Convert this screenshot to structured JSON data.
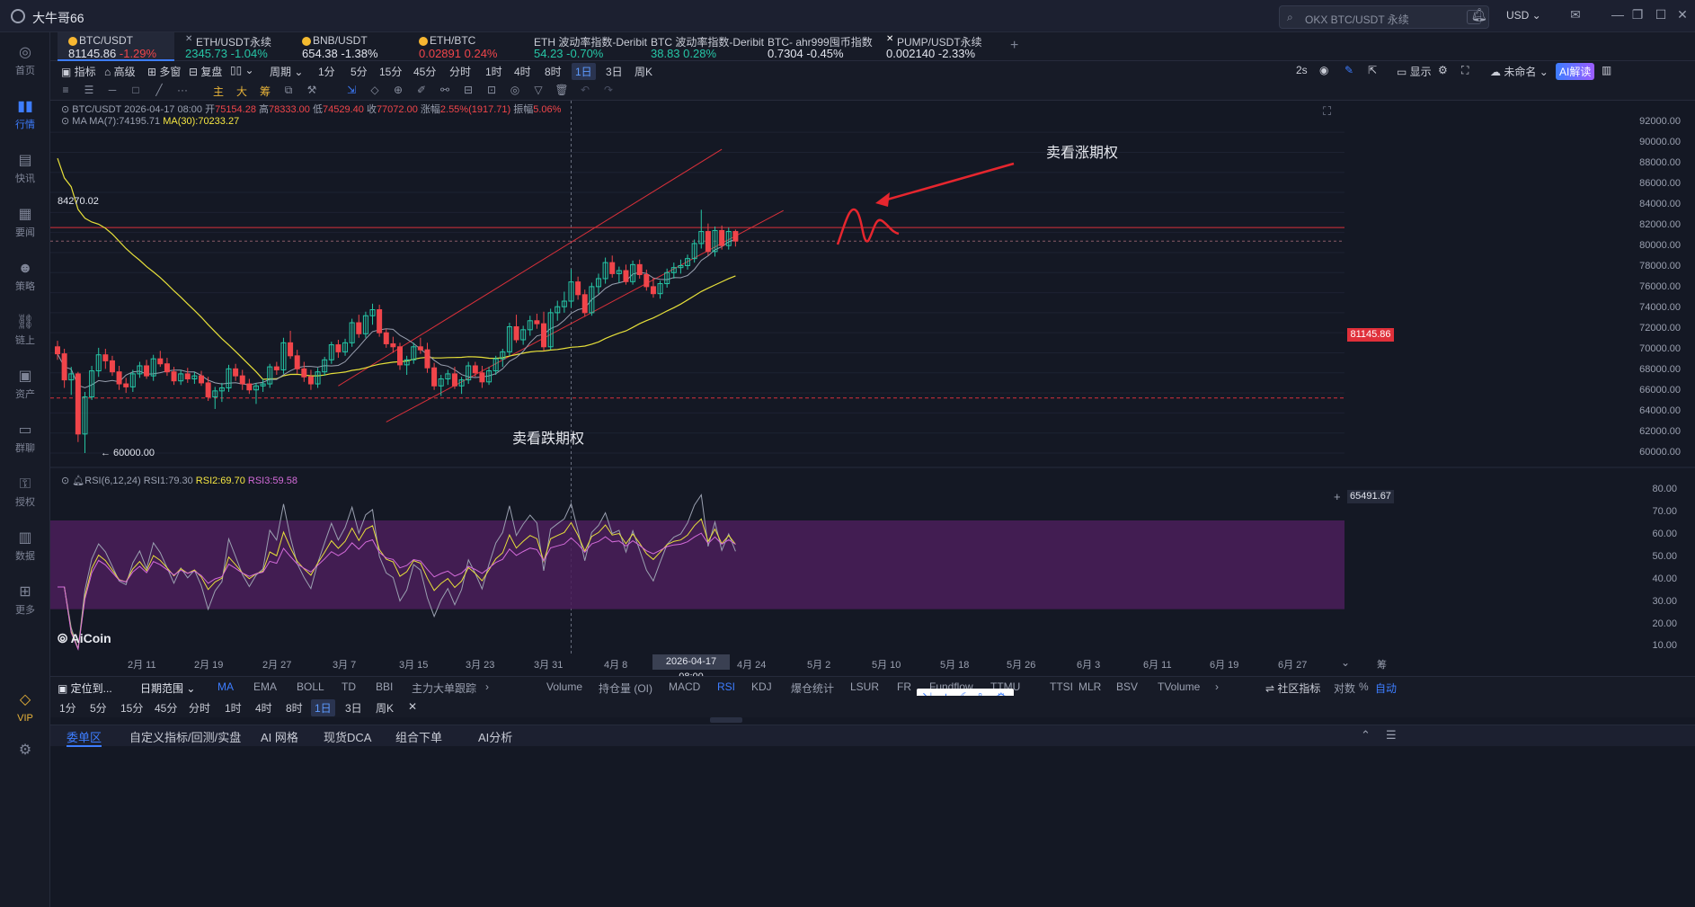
{
  "app": {
    "title": "大牛哥66"
  },
  "titlebar": {
    "search_placeholder": "OKX BTC/USDT 永续",
    "search_kbd": "/",
    "currency": "USD"
  },
  "sidebar": {
    "items": [
      {
        "label": "首页",
        "icon": "home-icon"
      },
      {
        "label": "行情",
        "icon": "chart-icon"
      },
      {
        "label": "快讯",
        "icon": "news-icon"
      },
      {
        "label": "要闻",
        "icon": "doc-icon"
      },
      {
        "label": "策略",
        "icon": "robot-icon"
      },
      {
        "label": "链上",
        "icon": "chain-icon"
      },
      {
        "label": "资产",
        "icon": "wallet-icon"
      },
      {
        "label": "群聊",
        "icon": "chat-icon"
      },
      {
        "label": "授权",
        "icon": "key-icon"
      },
      {
        "label": "数据",
        "icon": "data-icon"
      },
      {
        "label": "更多",
        "icon": "grid-icon"
      },
      {
        "label": "VIP",
        "icon": "diamond-icon"
      }
    ]
  },
  "tickers": [
    {
      "name": "BTC/USDT",
      "price": "81145.86",
      "change": "-1.29%",
      "dir": "down",
      "color": "#f7b731"
    },
    {
      "name": "ETH/USDT永续",
      "price": "2345.73",
      "change": "-1.04%",
      "dir": "up",
      "color": "#9aa0b0"
    },
    {
      "name": "BNB/USDT",
      "price": "654.38",
      "change": "-1.38%",
      "dir": "white",
      "color": "#f3ba2f"
    },
    {
      "name": "ETH/BTC",
      "price": "0.02891",
      "change": "0.24%",
      "dir": "down",
      "color": "#f7b731"
    },
    {
      "name": "ETH 波动率指数-Deribit",
      "price": "54.23",
      "change": "-0.70%",
      "dir": "up",
      "color": ""
    },
    {
      "name": "BTC 波动率指数-Deribit",
      "price": "38.83",
      "change": "0.28%",
      "dir": "up",
      "color": ""
    },
    {
      "name": "BTC- ahr999囤币指数",
      "price": "0.7304",
      "change": "-0.45%",
      "dir": "white",
      "color": ""
    },
    {
      "name": "PUMP/USDT永续",
      "price": "0.002140",
      "change": "-2.33%",
      "dir": "white",
      "color": "#ffffff"
    }
  ],
  "toolbar": {
    "indicator": "指标",
    "advanced": "高级",
    "multi": "多窗",
    "replay": "复盘",
    "period": "周期",
    "intervals": [
      "1分",
      "5分",
      "15分",
      "45分",
      "分时",
      "1时",
      "4时",
      "8时",
      "1日",
      "3日",
      "周K"
    ],
    "selected_interval": "1日",
    "refresh": "2s",
    "display": "显示",
    "unnamed": "未命名",
    "ai": "AI解读"
  },
  "drawtools": {
    "main": "主",
    "big": "大",
    "chip": "筹"
  },
  "chart_info": {
    "symbol": "BTC/USDT",
    "datetime": "2026-04-17 08:00",
    "open_label": "开",
    "open": "75154.28",
    "high_label": "高",
    "high": "78333.00",
    "low_label": "低",
    "low": "74529.40",
    "close_label": "收",
    "close": "77072.00",
    "chg_label": "涨幅",
    "chg": "2.55%(1917.71)",
    "amp_label": "振幅",
    "amp": "5.06%",
    "ma_label": "MA",
    "ma7": "MA(7):74195.71",
    "ma30": "MA(30):70233.27",
    "rsi_label": "RSI(6,12,24)",
    "rsi1": "RSI1:79.30",
    "rsi2": "RSI2:69.70",
    "rsi3": "RSI3:59.58"
  },
  "annotations": {
    "sell_call": "卖看涨期权",
    "sell_put": "卖看跌期权",
    "high_mark": "84270.02",
    "low_mark": "← 60000.00"
  },
  "price_axis": [
    "92000.00",
    "90000.00",
    "88000.00",
    "86000.00",
    "84000.00",
    "82000.00",
    "80000.00",
    "78000.00",
    "76000.00",
    "74000.00",
    "72000.00",
    "70000.00",
    "68000.00",
    "66000.00",
    "64000.00",
    "62000.00",
    "60000.00"
  ],
  "current_price": "81145.86",
  "hline_price": "65491.67",
  "rsi_axis": [
    "80.00",
    "70.00",
    "60.00",
    "50.00",
    "40.00",
    "30.00",
    "20.00",
    "10.00"
  ],
  "time_axis": [
    "2月 11",
    "2月 19",
    "2月 27",
    "3月 7",
    "3月 15",
    "3月 23",
    "3月 31",
    "4月 8",
    "4月 24",
    "5月 2",
    "5月 10",
    "5月 18",
    "5月 26",
    "6月 3",
    "6月 11",
    "6月 19",
    "6月 27"
  ],
  "crosshair_date": "2026-04-17 08:00",
  "axis_unit": "筹",
  "watermark": "AiCoin",
  "indicator_bar": {
    "locate": "定位到...",
    "range": "日期范围",
    "items": [
      "MA",
      "EMA",
      "BOLL",
      "TD",
      "BBI",
      "主力大单跟踪"
    ],
    "sub_items": [
      "Volume",
      "持仓量 (OI)",
      "MACD",
      "RSI",
      "KDJ",
      "爆仓统计",
      "LSUR",
      "FR",
      "Fundflow",
      "TTMU",
      "TTSI",
      "MLR",
      "BSV",
      "TVolume"
    ],
    "selected": "RSI",
    "community": "社区指标",
    "log": "对数",
    "pct": "%",
    "auto": "自动"
  },
  "theme_box": [
    "中"
  ],
  "bottom_tabs": [
    "委单区",
    "自定义指标/回测/实盘",
    "AI 网格",
    "现货DCA",
    "组合下单",
    "AI分析"
  ],
  "chart_data": {
    "type": "candlestick",
    "symbol": "BTC/USDT",
    "interval": "1日",
    "y_range": [
      60000,
      93000
    ],
    "candles": [
      [
        70600,
        71200,
        69300,
        69900
      ],
      [
        69900,
        70400,
        66500,
        67300
      ],
      [
        67300,
        68600,
        65800,
        67900
      ],
      [
        67900,
        68100,
        61100,
        61900
      ],
      [
        61900,
        66100,
        60000,
        65600
      ],
      [
        65600,
        68700,
        65300,
        68200
      ],
      [
        68200,
        70500,
        67600,
        69800
      ],
      [
        69800,
        70400,
        68400,
        69200
      ],
      [
        69200,
        69700,
        67700,
        68100
      ],
      [
        68100,
        68700,
        66300,
        66900
      ],
      [
        66900,
        67500,
        66000,
        66600
      ],
      [
        66600,
        68300,
        66100,
        67900
      ],
      [
        67900,
        69100,
        67500,
        68700
      ],
      [
        68700,
        69300,
        67400,
        67700
      ],
      [
        67700,
        69800,
        67200,
        69400
      ],
      [
        69400,
        70200,
        68600,
        68900
      ],
      [
        68900,
        69500,
        67700,
        68100
      ],
      [
        68100,
        68600,
        66800,
        67200
      ],
      [
        67200,
        68300,
        66800,
        67900
      ],
      [
        67900,
        68500,
        67000,
        67400
      ],
      [
        67400,
        68100,
        66900,
        67700
      ],
      [
        67700,
        68200,
        66700,
        67000
      ],
      [
        67000,
        67600,
        65200,
        65600
      ],
      [
        65600,
        66600,
        64400,
        66200
      ],
      [
        66200,
        67000,
        65100,
        66500
      ],
      [
        66500,
        68800,
        66100,
        68400
      ],
      [
        68400,
        68900,
        67200,
        67700
      ],
      [
        67700,
        68300,
        66300,
        66900
      ],
      [
        66900,
        67400,
        65900,
        66300
      ],
      [
        66300,
        67000,
        64900,
        66700
      ],
      [
        66700,
        67400,
        66100,
        66900
      ],
      [
        66900,
        68900,
        66500,
        68600
      ],
      [
        68600,
        69100,
        67800,
        68300
      ],
      [
        68300,
        71500,
        67900,
        71000
      ],
      [
        71000,
        72200,
        69400,
        69700
      ],
      [
        69700,
        70300,
        67900,
        68400
      ],
      [
        68400,
        69100,
        67100,
        67600
      ],
      [
        67600,
        68300,
        66300,
        66900
      ],
      [
        66900,
        68500,
        66500,
        68100
      ],
      [
        68100,
        69600,
        67700,
        69300
      ],
      [
        69300,
        71100,
        68900,
        70800
      ],
      [
        70800,
        71300,
        69500,
        70100
      ],
      [
        70100,
        71400,
        69700,
        71000
      ],
      [
        71000,
        73400,
        70600,
        73000
      ],
      [
        73000,
        73800,
        71500,
        71900
      ],
      [
        71900,
        74100,
        71500,
        73700
      ],
      [
        73700,
        74900,
        72800,
        74300
      ],
      [
        74300,
        74800,
        71600,
        72000
      ],
      [
        72000,
        72400,
        70500,
        70900
      ],
      [
        70900,
        71600,
        70000,
        70600
      ],
      [
        70600,
        71000,
        68300,
        68800
      ],
      [
        68800,
        69700,
        67800,
        69300
      ],
      [
        69300,
        71000,
        68900,
        70600
      ],
      [
        70600,
        71500,
        69900,
        70300
      ],
      [
        70300,
        71000,
        68000,
        68500
      ],
      [
        68500,
        69000,
        66300,
        66700
      ],
      [
        66700,
        67800,
        65700,
        67400
      ],
      [
        67400,
        68300,
        66800,
        67900
      ],
      [
        67900,
        68600,
        66400,
        66700
      ],
      [
        66700,
        67600,
        65900,
        67300
      ],
      [
        67300,
        69100,
        66900,
        68700
      ],
      [
        68700,
        69100,
        67600,
        68000
      ],
      [
        68000,
        68700,
        66500,
        67100
      ],
      [
        67100,
        68600,
        66800,
        68200
      ],
      [
        68200,
        69700,
        67800,
        69400
      ],
      [
        69400,
        70400,
        68600,
        70100
      ],
      [
        70100,
        73000,
        69700,
        72600
      ],
      [
        72600,
        73800,
        71000,
        71300
      ],
      [
        71300,
        72700,
        70800,
        72300
      ],
      [
        72300,
        73700,
        71700,
        73200
      ],
      [
        73200,
        73900,
        72400,
        72900
      ],
      [
        72900,
        74100,
        70200,
        70600
      ],
      [
        70600,
        74400,
        70300,
        74000
      ],
      [
        74000,
        75200,
        73200,
        74600
      ],
      [
        74600,
        76100,
        74000,
        75154
      ],
      [
        75154,
        78333,
        74529,
        77072
      ],
      [
        77072,
        77600,
        75300,
        75800
      ],
      [
        75800,
        76300,
        73600,
        74000
      ],
      [
        74000,
        77000,
        73700,
        76600
      ],
      [
        76600,
        77900,
        75900,
        77400
      ],
      [
        77400,
        79500,
        76900,
        79000
      ],
      [
        79000,
        79700,
        77500,
        77900
      ],
      [
        77900,
        78600,
        77000,
        78200
      ],
      [
        78200,
        78800,
        76800,
        77100
      ],
      [
        77100,
        79200,
        76800,
        78800
      ],
      [
        78800,
        79300,
        77400,
        77800
      ],
      [
        77800,
        78300,
        76200,
        76600
      ],
      [
        76600,
        77500,
        75500,
        75900
      ],
      [
        75900,
        77200,
        75400,
        76900
      ],
      [
        76900,
        78400,
        76500,
        78000
      ],
      [
        78000,
        79000,
        77400,
        78500
      ],
      [
        78500,
        79300,
        77900,
        78700
      ],
      [
        78700,
        79800,
        78300,
        79400
      ],
      [
        79400,
        81300,
        79000,
        80900
      ],
      [
        80900,
        84270,
        80400,
        82100
      ],
      [
        82100,
        82900,
        79700,
        80100
      ],
      [
        80100,
        82600,
        79600,
        82200
      ],
      [
        82200,
        82700,
        80300,
        80700
      ],
      [
        80700,
        82500,
        80300,
        82100
      ],
      [
        82100,
        82300,
        80600,
        81146
      ]
    ],
    "ma7_last": 74195.71,
    "ma30_last": 70233.27,
    "hlines": [
      82500,
      65491.67
    ],
    "channel_upper": [
      [
        41,
        66700
      ],
      [
        97,
        90300
      ]
    ],
    "channel_lower": [
      [
        48,
        63100
      ],
      [
        106,
        84200
      ]
    ],
    "rsi_y_range": [
      10,
      85
    ],
    "rsi_overbought": 70,
    "rsi_oversold": 30
  }
}
